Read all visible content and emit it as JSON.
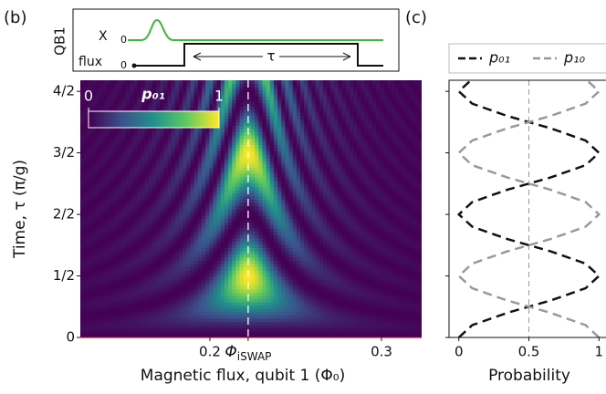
{
  "chart_data": [
    {
      "type": "heatmap",
      "panel_label": "(b)",
      "xlabel": "Magnetic flux, qubit 1 (Φ₀)",
      "ylabel": "Time, τ (π/g)",
      "xlim": [
        0.1245,
        0.3234
      ],
      "ylim": [
        0,
        2.09
      ],
      "xticks": [
        0.2,
        {
          "value": 0.2223,
          "label": "Φ",
          "subscript": "iSWAP"
        },
        0.3
      ],
      "yticks": [
        {
          "value": 0,
          "label": "0"
        },
        {
          "value": 0.5,
          "label": "1/2"
        },
        {
          "value": 1,
          "label": "2/2"
        },
        {
          "value": 1.5,
          "label": "3/2"
        },
        {
          "value": 2,
          "label": "4/2"
        }
      ],
      "colorbar": {
        "label": "p₀₁",
        "ticks": [
          0,
          1
        ]
      },
      "inset": {
        "side_label": "QB1",
        "pulse_label": "X",
        "pulse_zero": "0",
        "flux_label": "flux",
        "flux_zero": "0",
        "duration_label": "τ"
      }
    },
    {
      "type": "line",
      "panel_label": "(c)",
      "xlabel": "Probability",
      "xlim": [
        -0.07,
        1.05
      ],
      "ylim": [
        0,
        2.09
      ],
      "xticks": [
        0,
        0.5,
        1
      ],
      "yticks": [
        0,
        0.5,
        1,
        1.5,
        2
      ],
      "reference_x": 0.5,
      "y": [
        0,
        0.1,
        0.2,
        0.3,
        0.4,
        0.5,
        0.6,
        0.7,
        0.8,
        0.9,
        1,
        1.1,
        1.2,
        1.3,
        1.4,
        1.5,
        1.6,
        1.7,
        1.8,
        1.9,
        2,
        2.1
      ],
      "series": [
        {
          "name": "p₀₁",
          "color": "#111111",
          "values": [
            0,
            0.0955,
            0.3455,
            0.6545,
            0.9045,
            1,
            0.9045,
            0.6545,
            0.3455,
            0.0955,
            0,
            0.0955,
            0.3455,
            0.6545,
            0.9045,
            1,
            0.9045,
            0.6545,
            0.3455,
            0.0955,
            0,
            0.0955
          ]
        },
        {
          "name": "p₁₀",
          "color": "#999999",
          "values": [
            1,
            0.9045,
            0.6545,
            0.3455,
            0.0955,
            0,
            0.0955,
            0.3455,
            0.6545,
            0.9045,
            1,
            0.9045,
            0.6545,
            0.3455,
            0.0955,
            0,
            0.0955,
            0.3455,
            0.6545,
            0.9045,
            1,
            0.9045
          ]
        }
      ]
    }
  ]
}
